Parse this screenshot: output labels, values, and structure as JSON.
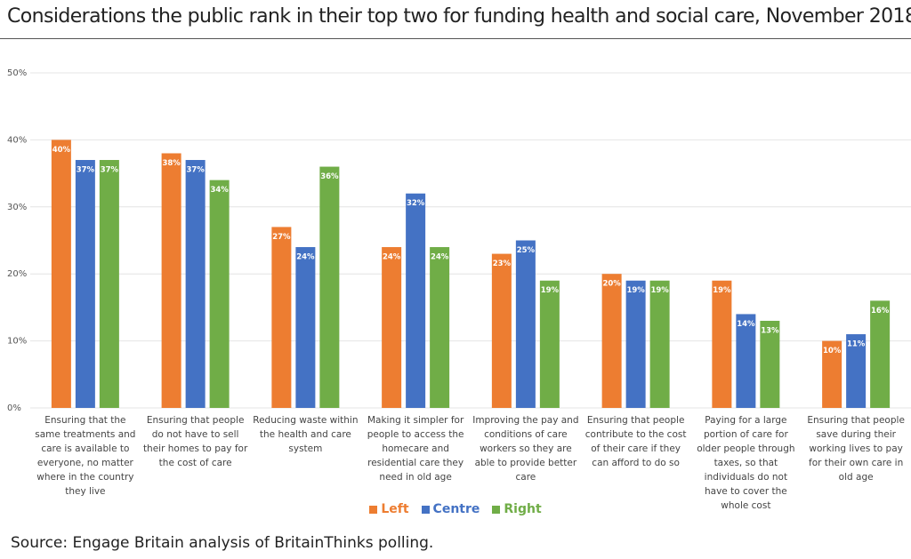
{
  "chart_data": {
    "type": "bar",
    "title": "Considerations the public rank in their top two for funding health and social care, November 2018",
    "source": "Source: Engage Britain analysis of BritainThinks polling.",
    "categories": [
      "Ensuring that the same treatments and care is available to everyone, no matter where in the country they live",
      "Ensuring that people do not have to sell their homes to pay for the cost of care",
      "Reducing waste within the health and care system",
      "Making it simpler for people to access the homecare and residential care they need in old age",
      "Improving the pay and conditions of care workers so they are able to provide better care",
      "Ensuring that people contribute to the cost of their care if they can afford to do so",
      "Paying for a large portion of care for older people through taxes, so that individuals do not have to cover the whole cost",
      "Ensuring that people save during their working lives to pay for their own care in old age"
    ],
    "series": [
      {
        "name": "Left",
        "color": "#ed7d31",
        "values": [
          40,
          38,
          27,
          24,
          23,
          20,
          19,
          10
        ],
        "value_labels": [
          "40%",
          "38%",
          "27%",
          "24%",
          "23%",
          "20%",
          "19%",
          "10%"
        ]
      },
      {
        "name": "Centre",
        "color": "#4472c4",
        "values": [
          37,
          37,
          24,
          32,
          25,
          19,
          14,
          11
        ],
        "value_labels": [
          "37%",
          "37%",
          "24%",
          "32%",
          "25%",
          "19%",
          "14%",
          "11%"
        ]
      },
      {
        "name": "Right",
        "color": "#70ad47",
        "values": [
          37,
          34,
          36,
          24,
          19,
          19,
          13,
          16
        ],
        "value_labels": [
          "37%",
          "34%",
          "36%",
          "24%",
          "19%",
          "19%",
          "13%",
          "16%"
        ]
      }
    ],
    "ylim": [
      0,
      50
    ],
    "yticks": [
      {
        "value": 0,
        "label": "0%"
      },
      {
        "value": 10,
        "label": "10%"
      },
      {
        "value": 20,
        "label": "20%"
      },
      {
        "value": 30,
        "label": "30%"
      },
      {
        "value": 40,
        "label": "40%"
      },
      {
        "value": 50,
        "label": "50%"
      }
    ],
    "grid": true
  }
}
